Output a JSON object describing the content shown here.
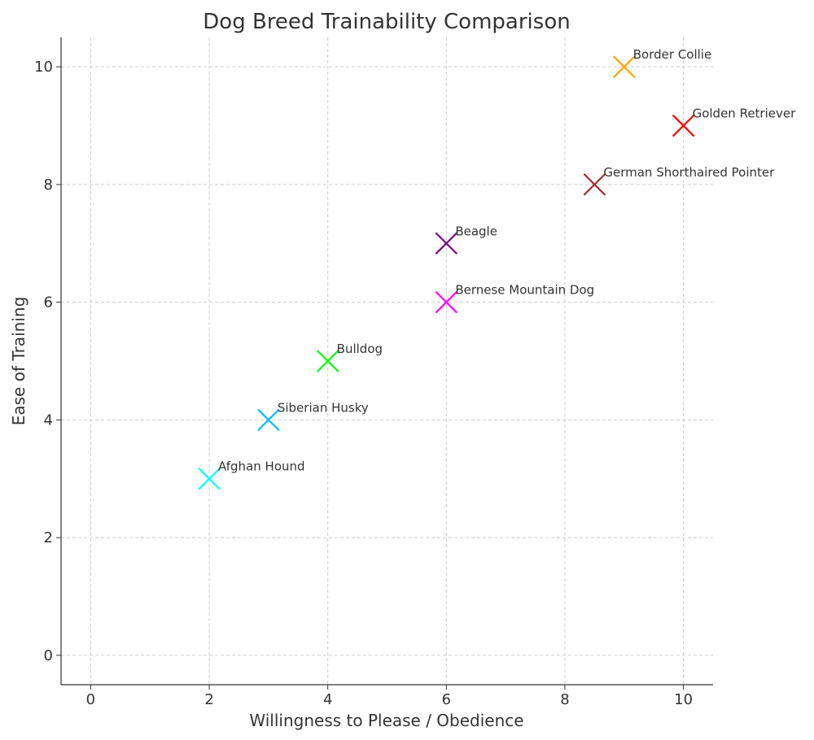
{
  "chart_data": {
    "type": "scatter",
    "title": "Dog Breed Trainability Comparison",
    "xlabel": "Willingness to Please / Obedience",
    "ylabel": "Ease of Training",
    "xlim": [
      -0.5,
      10.5
    ],
    "ylim": [
      -0.5,
      10.5
    ],
    "xticks": [
      0,
      2,
      4,
      6,
      8,
      10
    ],
    "yticks": [
      0,
      2,
      4,
      6,
      8,
      10
    ],
    "grid": true,
    "marker": "x",
    "points": [
      {
        "label": "Border Collie",
        "x": 9,
        "y": 10,
        "color": "#ffa500"
      },
      {
        "label": "Golden Retriever",
        "x": 10,
        "y": 9,
        "color": "#ff0000"
      },
      {
        "label": "German Shorthaired Pointer",
        "x": 8.5,
        "y": 8,
        "color": "#a52a2a"
      },
      {
        "label": "Beagle",
        "x": 6,
        "y": 7,
        "color": "#800080"
      },
      {
        "label": "Bernese Mountain Dog",
        "x": 6,
        "y": 6,
        "color": "#ff00ff"
      },
      {
        "label": "Bulldog",
        "x": 4,
        "y": 5,
        "color": "#00ff00"
      },
      {
        "label": "Siberian Husky",
        "x": 3,
        "y": 4,
        "color": "#00bfff"
      },
      {
        "label": "Afghan Hound",
        "x": 2,
        "y": 3,
        "color": "#00ffff"
      }
    ]
  }
}
